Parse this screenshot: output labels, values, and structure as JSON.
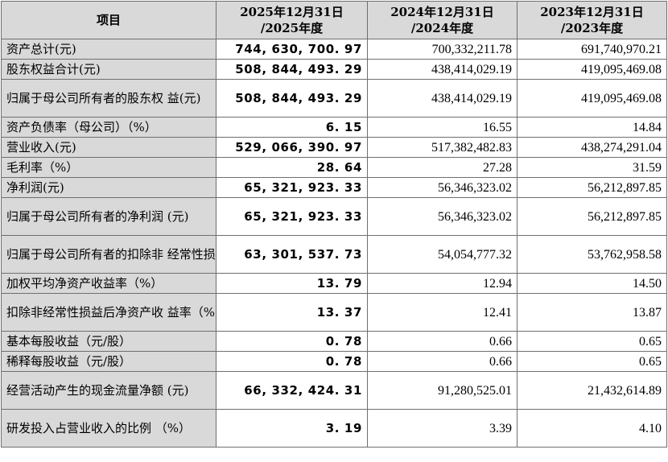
{
  "header": {
    "item": "项目",
    "col2025": "2025年12月31日\n/2025年度",
    "col2024": "2024年12月31日\n/2024年度",
    "col2023": "2023年12月31日\n/2023年度"
  },
  "rows": [
    {
      "label": "资产总计(元)",
      "v2025": "744, 630, 700. 97",
      "v2024": "700,332,211.78",
      "v2023": "691,740,970.21",
      "h": 1
    },
    {
      "label": "股东权益合计(元)",
      "v2025": "508, 844, 493. 29",
      "v2024": "438,414,029.19",
      "v2023": "419,095,469.08",
      "h": 1
    },
    {
      "label": "归属于母公司所有者的股东权\n益(元)",
      "v2025": "508, 844, 493. 29",
      "v2024": "438,414,029.19",
      "v2023": "419,095,469.08",
      "h": 2
    },
    {
      "label": "资产负债率（母公司）（%）",
      "v2025": "6. 15",
      "v2024": "16.55",
      "v2023": "14.84",
      "h": 1
    },
    {
      "label": "营业收入(元)",
      "v2025": "529, 066, 390. 97",
      "v2024": "517,382,482.83",
      "v2023": "438,274,291.04",
      "h": 1
    },
    {
      "label": "毛利率（%）",
      "v2025": "28. 64",
      "v2024": "27.28",
      "v2023": "31.59",
      "h": 1
    },
    {
      "label": "净利润(元)",
      "v2025": "65, 321, 923. 33",
      "v2024": "56,346,323.02",
      "v2023": "56,212,897.85",
      "h": 1
    },
    {
      "label": "归属于母公司所有者的净利润\n(元)",
      "v2025": "65, 321, 923. 33",
      "v2024": "56,346,323.02",
      "v2023": "56,212,897.85",
      "h": 2
    },
    {
      "label": "归属于母公司所有者的扣除非\n经常性损益后的净利润(元)",
      "v2025": "63, 301, 537. 73",
      "v2024": "54,054,777.32",
      "v2023": "53,762,958.58",
      "h": 2
    },
    {
      "label": "加权平均净资产收益率（%）",
      "v2025": "13. 79",
      "v2024": "12.94",
      "v2023": "14.50",
      "h": 1
    },
    {
      "label": "扣除非经常性损益后净资产收\n益率（%）",
      "v2025": "13. 37",
      "v2024": "12.41",
      "v2023": "13.87",
      "h": 2
    },
    {
      "label": "基本每股收益（元/股）",
      "v2025": "0. 78",
      "v2024": "0.66",
      "v2023": "0.65",
      "h": 1
    },
    {
      "label": "稀释每股收益（元/股）",
      "v2025": "0. 78",
      "v2024": "0.66",
      "v2023": "0.65",
      "h": 1
    },
    {
      "label": "经营活动产生的现金流量净额\n(元)",
      "v2025": "66, 332, 424. 31",
      "v2024": "91,280,525.01",
      "v2023": "21,432,614.89",
      "h": 2
    },
    {
      "label": "研发投入占营业收入的比例\n（%）",
      "v2025": "3. 19",
      "v2024": "3.39",
      "v2023": "4.10",
      "h": 2
    }
  ]
}
